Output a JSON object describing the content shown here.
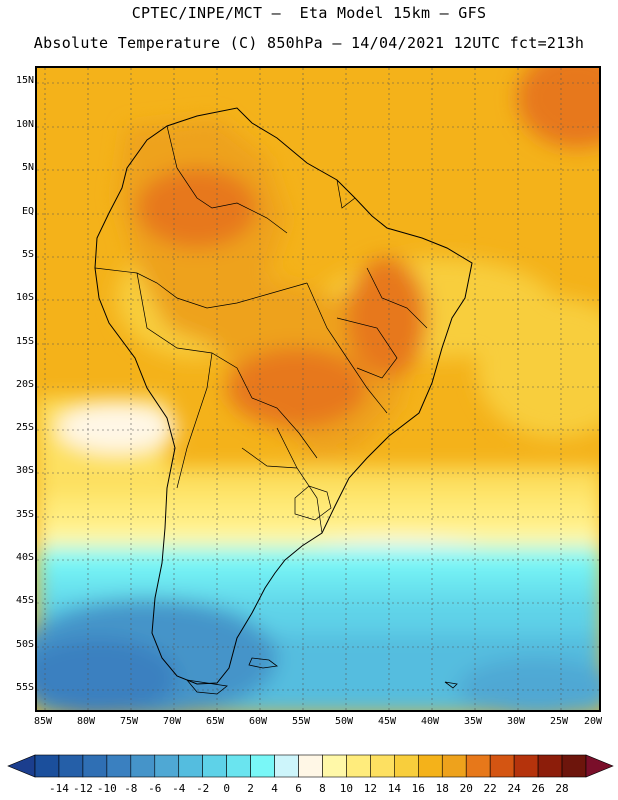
{
  "header": {
    "line1": "CPTEC/INPE/MCT –  Eta Model 15km – GFS",
    "line2": "Absolute Temperature (C) 850hPa – 14/04/2021 12UTC fct=213h"
  },
  "map": {
    "lat_labels": [
      "15N",
      "10N",
      "5N",
      "EQ",
      "5S",
      "10S",
      "15S",
      "20S",
      "25S",
      "30S",
      "35S",
      "40S",
      "45S",
      "50S",
      "55S"
    ],
    "lon_labels": [
      "85W",
      "80W",
      "75W",
      "70W",
      "65W",
      "60W",
      "55W",
      "50W",
      "45W",
      "40W",
      "35W",
      "30W",
      "25W",
      "20W"
    ]
  },
  "colorbar": {
    "labels": [
      "-14",
      "-12",
      "-10",
      "-8",
      "-6",
      "-4",
      "-2",
      "0",
      "2",
      "4",
      "6",
      "8",
      "10",
      "12",
      "14",
      "16",
      "18",
      "20",
      "22",
      "24",
      "26",
      "28"
    ],
    "colors": [
      "#1b4f9c",
      "#255fa8",
      "#2f6fb4",
      "#3a80c0",
      "#4594c9",
      "#4fa8d4",
      "#54bddf",
      "#5ed2e8",
      "#6ae4ef",
      "#79f7f7",
      "#cdf5fb",
      "#fff7e6",
      "#fff8a8",
      "#ffec7c",
      "#fde061",
      "#f8ce3c",
      "#f4b21a",
      "#eea21c",
      "#e7781a",
      "#d45512",
      "#b5330c",
      "#8c1d0a",
      "#6d150c"
    ],
    "under_color": "#1b3e8e",
    "over_color": "#7a0f2a"
  }
}
